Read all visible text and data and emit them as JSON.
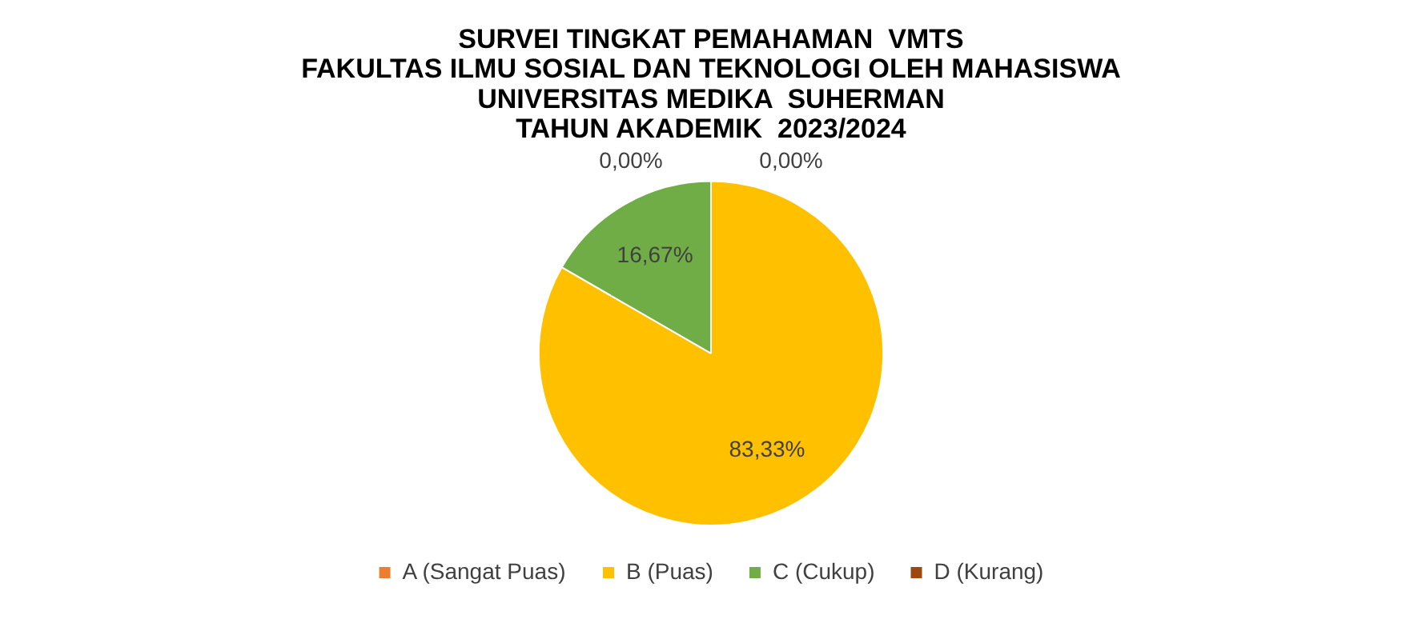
{
  "chart_data": {
    "type": "pie",
    "title": "SURVEI TINGKAT PEMAHAMAN  VMTS\nFAKULTAS ILMU SOSIAL DAN TEKNOLOGI OLEH MAHASISWA\nUNIVERSITAS MEDIKA  SUHERMAN\nTAHUN AKADEMIK  2023/2024",
    "categories": [
      "A (Sangat Puas)",
      "B (Puas)",
      "C (Cukup)",
      "D (Kurang)"
    ],
    "values": [
      0,
      83.33,
      16.67,
      0
    ],
    "colors": [
      "#ed7d31",
      "#ffc000",
      "#70ad47",
      "#9e480e"
    ],
    "value_labels": [
      "0,00%",
      "83,33%",
      "16,67%",
      "0,00%"
    ],
    "legend": "bottom"
  }
}
